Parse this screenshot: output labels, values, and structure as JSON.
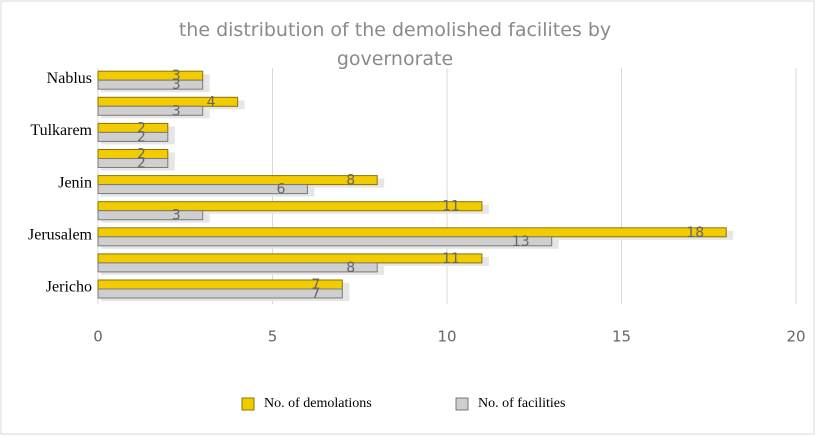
{
  "chart_data": {
    "type": "hbar",
    "title": "the distribution of the demolished facilites  by governorate",
    "categories": [
      "Jericho",
      null,
      "Jerusalem",
      null,
      "Jenin",
      null,
      "Tulkarem",
      null,
      "Nablus"
    ],
    "series": [
      {
        "name": "No. of demolations",
        "color": "#f2cc00",
        "values": [
          7,
          11,
          18,
          11,
          8,
          2,
          2,
          4,
          3
        ]
      },
      {
        "name": "No. of facilities",
        "color": "#cfcfcf",
        "values": [
          7,
          8,
          13,
          3,
          6,
          2,
          2,
          3,
          3
        ]
      }
    ],
    "xlim": [
      0,
      20
    ],
    "xticks": [
      0,
      5,
      10,
      15,
      20
    ],
    "grid": true,
    "legend": "bottom"
  }
}
